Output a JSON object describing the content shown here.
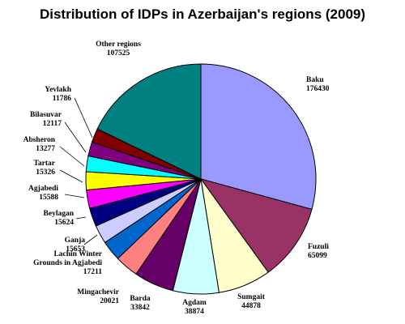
{
  "chart_data": {
    "type": "pie",
    "title": "Distribution of IDPs in Azerbaijan's regions (2009)",
    "slices": [
      {
        "name": "Baku",
        "value": 176430,
        "value_label": "176430",
        "color": "#9999ff"
      },
      {
        "name": "Fuzuli",
        "value": 65099,
        "value_label": "65099",
        "color": "#993366"
      },
      {
        "name": "Sumgait",
        "value": 44878,
        "value_label": "44878",
        "color": "#ffffcc"
      },
      {
        "name": "Agdam",
        "value": 38874,
        "value_label": "38874",
        "color": "#ccffff"
      },
      {
        "name": "Barda",
        "value": 33842,
        "value_label": "33842",
        "color": "#660066"
      },
      {
        "name": "Mingachevir",
        "value": 20021,
        "value_label": "20021",
        "color": "#ff8080"
      },
      {
        "name": "Lachin Winter Grounds in Agjabedi",
        "name_lines": [
          "Lachin Winter",
          "Grounds in Agjabedi"
        ],
        "value": 17211,
        "value_label": "17211",
        "color": "#0066cc"
      },
      {
        "name": "Ganja",
        "value": 15653,
        "value_label": "15653",
        "color": "#ccccff"
      },
      {
        "name": "Beylagan",
        "value": 15624,
        "value_label": "15624",
        "color": "#000080"
      },
      {
        "name": "Agjabedi",
        "value": 15588,
        "value_label": "15588",
        "color": "#ff00ff"
      },
      {
        "name": "Tartar",
        "value": 15326,
        "value_label": "15326",
        "color": "#ffff00"
      },
      {
        "name": "Absheron",
        "value": 13277,
        "value_label": "13277",
        "color": "#00ffff"
      },
      {
        "name": "Bilasuvar",
        "value": 12117,
        "value_label": "12117",
        "color": "#800080"
      },
      {
        "name": "Yevlakh",
        "value": 11786,
        "value_label": "11786",
        "color": "#800000"
      },
      {
        "name": "Other regions",
        "value": 107525,
        "value_label": "107525",
        "color": "#008080"
      }
    ]
  }
}
